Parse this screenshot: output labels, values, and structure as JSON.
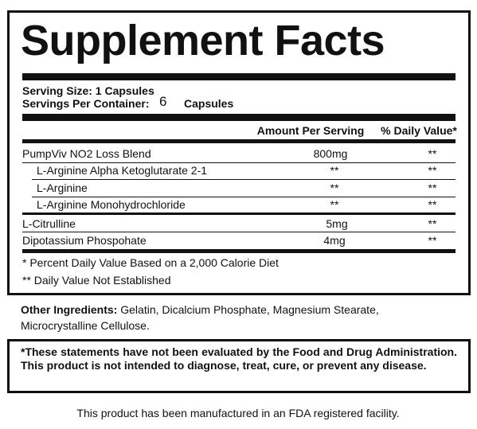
{
  "title": "Supplement Facts",
  "serving_size": "Serving Size: 1 Capsules",
  "servings_per_container": {
    "label": "Servings Per Container:",
    "value": "6",
    "unit": "Capsules"
  },
  "table": {
    "header": [
      "Amount Per Serving",
      "% Daily Value*"
    ],
    "rows": [
      [
        "PumpViv NO2 Loss Blend",
        "800mg",
        "**"
      ],
      [
        "L-Arginine Alpha Ketoglutarate 2-1",
        "**",
        "**"
      ],
      [
        "L-Arginine",
        "**",
        "**"
      ],
      [
        "L-Arginine Monohydrochloride",
        "**",
        "**"
      ],
      [
        "L-Citrulline",
        "5mg",
        "**"
      ],
      [
        "Dipotassium Phospohate",
        "4mg",
        "**"
      ]
    ]
  },
  "footnotes": [
    "* Percent Daily Value Based on a 2,000 Calorie Diet",
    "** Daily Value Not Established"
  ],
  "other_ingredients": {
    "label": "Other Ingredients:",
    "text": "Gelatin, Dicalcium Phosphate, Magnesium Stearate, Microcrystalline Cellulose."
  },
  "disclaimer": "*These statements have not been evaluated by the Food and Drug Administration. This product is not intended to diagnose, treat, cure, or prevent any disease.",
  "footer": "This product has been manufactured in an FDA registered facility."
}
